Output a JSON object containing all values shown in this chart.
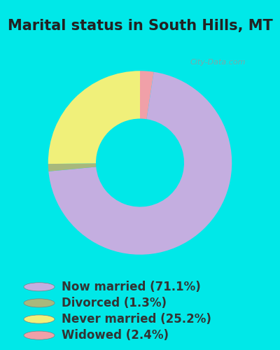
{
  "title": "Marital status in South Hills, MT",
  "slices": [
    71.1,
    1.3,
    25.2,
    2.4
  ],
  "labels": [
    "Now married (71.1%)",
    "Divorced (1.3%)",
    "Never married (25.2%)",
    "Widowed (2.4%)"
  ],
  "colors": [
    "#c4aee0",
    "#a8b87c",
    "#f0f07a",
    "#f0a0a8"
  ],
  "background_outer": "#00e8e8",
  "background_chart": "#ddf0e0",
  "title_fontsize": 15,
  "legend_fontsize": 12,
  "watermark": "City-Data.com",
  "donut_width": 0.52
}
